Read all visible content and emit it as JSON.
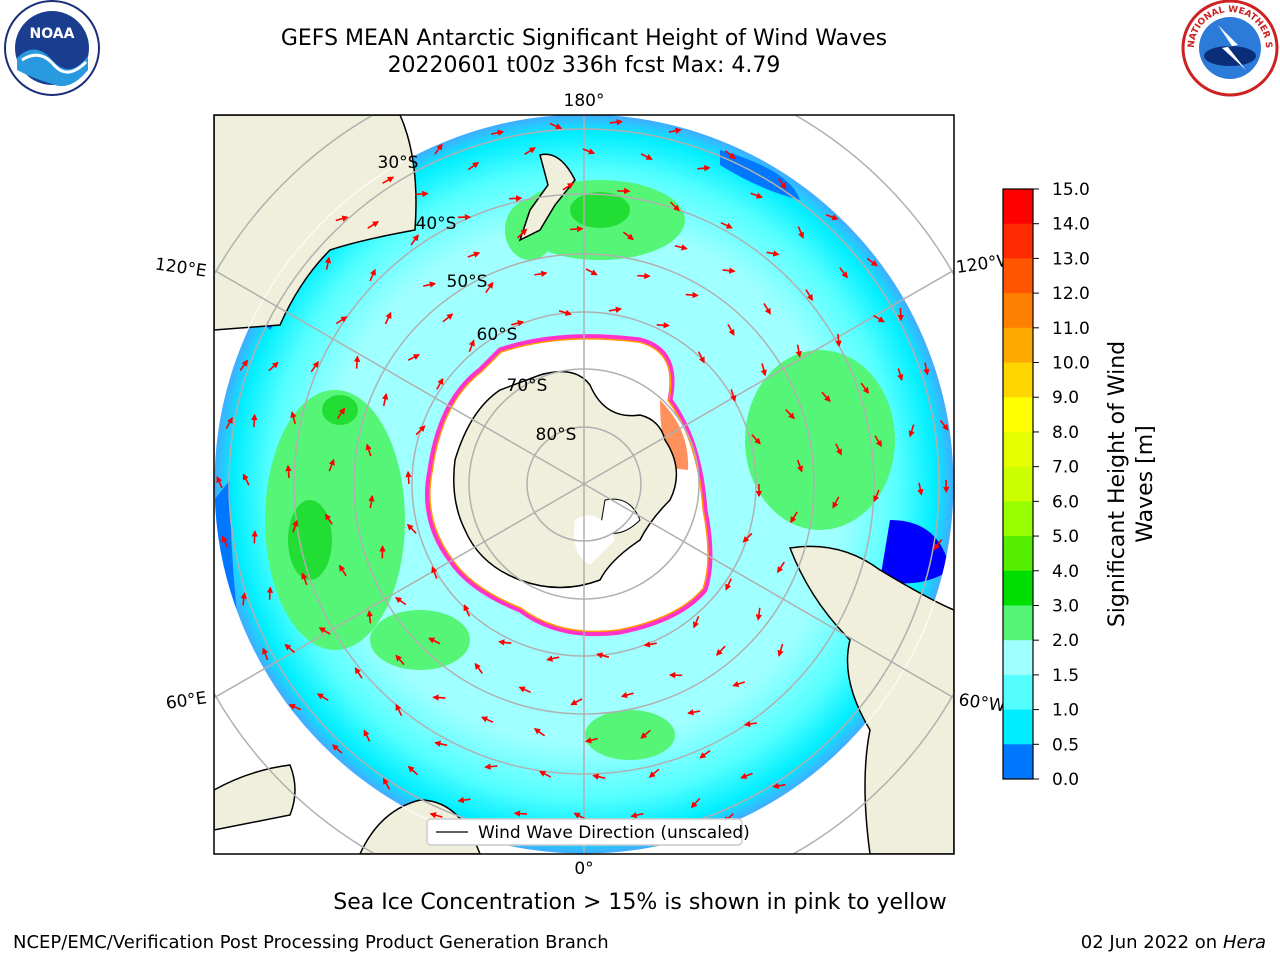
{
  "title": {
    "line1": "GEFS MEAN Antarctic Significant Height of Wind Waves",
    "line2": "20220601 t00z 336h fcst   Max: 4.79"
  },
  "logos": {
    "noaa_text": "NOAA",
    "nws_text": "NATIONAL WEATHER SERVICE"
  },
  "map": {
    "longitude_labels": {
      "top": "180°",
      "bottom": "0°",
      "upper_left": "120°E",
      "lower_left": "60°E",
      "upper_right": "120°W",
      "lower_right": "60°W"
    },
    "latitude_labels": [
      "30°S",
      "40°S",
      "50°S",
      "60°S",
      "70°S",
      "80°S"
    ],
    "legend_label": "Wind Wave Direction (unscaled)"
  },
  "colorbar": {
    "label": "Significant Height of Wind Waves [m]",
    "ticks": [
      "15.0",
      "14.0",
      "13.0",
      "12.0",
      "11.0",
      "10.0",
      "9.0",
      "8.0",
      "7.0",
      "6.0",
      "5.0",
      "4.0",
      "3.0",
      "2.0",
      "1.5",
      "1.0",
      "0.5",
      "0.0"
    ],
    "colors": [
      "#ff0000",
      "#ff2a00",
      "#ff5500",
      "#ff8000",
      "#ffaa00",
      "#ffd500",
      "#ffff00",
      "#e6ff00",
      "#ccff00",
      "#99ff00",
      "#55ee00",
      "#00dd00",
      "#55f577",
      "#a0ffff",
      "#55ffff",
      "#00eeff",
      "#0077ff",
      "#0000ff"
    ]
  },
  "colors": {
    "land": "#efefdb",
    "ice": "#ffffff",
    "ice_edge_inner": "#ff9900",
    "ice_edge_outer": "#ff33cc",
    "arrow": "#ff0000",
    "grid": "#b0b0b0"
  },
  "notes": {
    "ice": "Sea Ice Concentration > 15% is shown in pink to yellow",
    "credit": "NCEP/EMC/Verification Post Processing Product Generation Branch",
    "date": "02 Jun 2022 on",
    "date_host": "Hera"
  }
}
